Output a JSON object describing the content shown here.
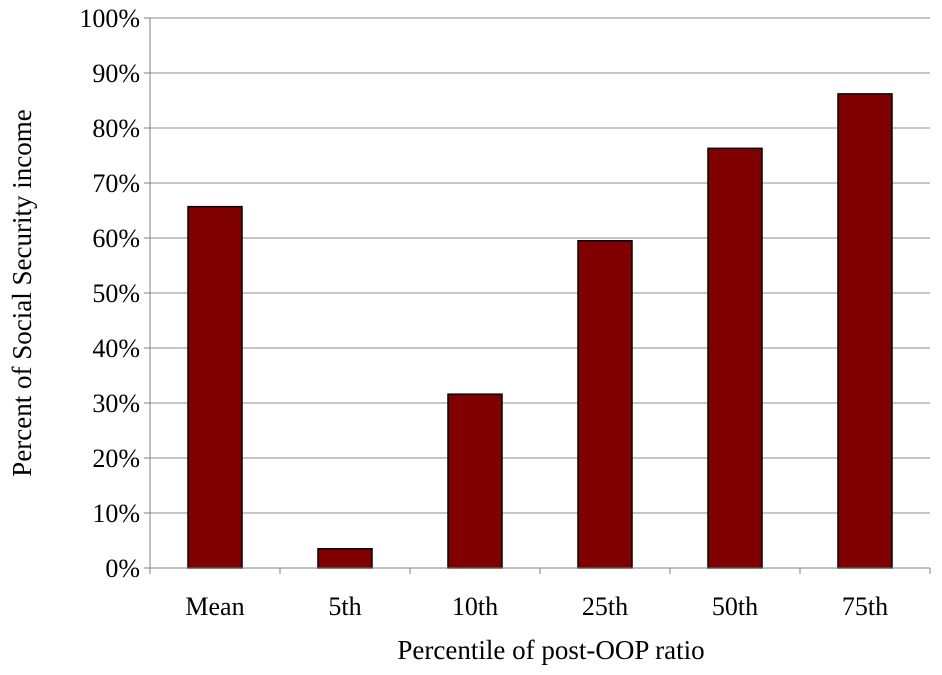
{
  "chart_data": {
    "type": "bar",
    "title": "",
    "xlabel": "Percentile of post-OOP ratio",
    "ylabel": "Percent of Social Security income",
    "categories": [
      "Mean",
      "5th",
      "10th",
      "25th",
      "50th",
      "75th"
    ],
    "values": [
      65.7,
      3.5,
      31.6,
      59.5,
      76.3,
      86.2
    ],
    "ylim": [
      0,
      100
    ],
    "yticks": [
      "0%",
      "10%",
      "20%",
      "30%",
      "40%",
      "50%",
      "60%",
      "70%",
      "80%",
      "90%",
      "100%"
    ],
    "grid": true,
    "legend": "none",
    "colors": {
      "bar_fill": "#800000",
      "bar_stroke": "#000000",
      "grid": "#8c8c8c",
      "axis": "#808080"
    }
  }
}
